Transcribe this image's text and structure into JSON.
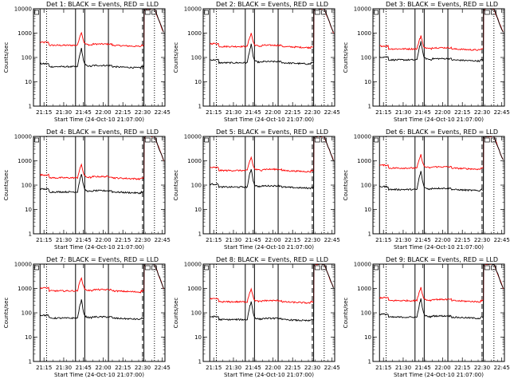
{
  "colors": {
    "events": "#000000",
    "lld": "#ff0000",
    "background": "#ffffff"
  },
  "chart_data": [
    {
      "type": "line",
      "title": "Det  1: BLACK = Events, RED = LLD",
      "xlabel": "Start Time (24-Oct-10 21:07:00)",
      "ylabel": "Counts/sec",
      "ylim": [
        1,
        10000
      ],
      "yscale": "log",
      "xlim": [
        "21:07",
        "22:47"
      ],
      "x_tick_labels": [
        "21:15",
        "21:30",
        "21:45",
        "22:00",
        "22:15",
        "22:30",
        "22:45"
      ],
      "y_tick_labels": [
        "1",
        "10",
        "100",
        "1000",
        "10000"
      ],
      "series": [
        {
          "name": "Events",
          "color": "#000000"
        },
        {
          "name": "LLD",
          "color": "#ff0000"
        }
      ]
    },
    {
      "type": "line",
      "title": "Det  2: BLACK = Events, RED = LLD",
      "xlabel": "Start Time (24-Oct-10 21:07:00)",
      "ylabel": "Counts/sec",
      "ylim": [
        1,
        10000
      ],
      "yscale": "log",
      "xlim": [
        "21:07",
        "22:47"
      ],
      "x_tick_labels": [
        "21:15",
        "21:30",
        "21:45",
        "22:00",
        "22:15",
        "22:30",
        "22:45"
      ],
      "y_tick_labels": [
        "1",
        "10",
        "100",
        "1000",
        "10000"
      ],
      "series": [
        {
          "name": "Events",
          "color": "#000000"
        },
        {
          "name": "LLD",
          "color": "#ff0000"
        }
      ]
    },
    {
      "type": "line",
      "title": "Det  3: BLACK = Events, RED = LLD",
      "xlabel": "Start Time (24-Oct-10 21:07:00)",
      "ylabel": "Counts/sec",
      "ylim": [
        1,
        10000
      ],
      "yscale": "log",
      "xlim": [
        "21:07",
        "22:47"
      ],
      "x_tick_labels": [
        "21:15",
        "21:30",
        "21:45",
        "22:00",
        "22:15",
        "22:30",
        "22:45"
      ],
      "y_tick_labels": [
        "1",
        "10",
        "100",
        "1000",
        "10000"
      ],
      "series": [
        {
          "name": "Events",
          "color": "#000000"
        },
        {
          "name": "LLD",
          "color": "#ff0000"
        }
      ]
    },
    {
      "type": "line",
      "title": "Det  4: BLACK = Events, RED = LLD",
      "xlabel": "Start Time (24-Oct-10 21:07:00)",
      "ylabel": "Counts/sec",
      "ylim": [
        1,
        10000
      ],
      "yscale": "log",
      "xlim": [
        "21:07",
        "22:47"
      ],
      "x_tick_labels": [
        "21:15",
        "21:30",
        "21:45",
        "22:00",
        "22:15",
        "22:30",
        "22:45"
      ],
      "y_tick_labels": [
        "1",
        "10",
        "100",
        "1000",
        "10000"
      ],
      "series": [
        {
          "name": "Events",
          "color": "#000000"
        },
        {
          "name": "LLD",
          "color": "#ff0000"
        }
      ]
    },
    {
      "type": "line",
      "title": "Det  5: BLACK = Events, RED = LLD",
      "xlabel": "Start Time (24-Oct-10 21:07:00)",
      "ylabel": "Counts/sec",
      "ylim": [
        1,
        10000
      ],
      "yscale": "log",
      "xlim": [
        "21:07",
        "22:47"
      ],
      "x_tick_labels": [
        "21:15",
        "21:30",
        "21:45",
        "22:00",
        "22:15",
        "22:30",
        "22:45"
      ],
      "y_tick_labels": [
        "1",
        "10",
        "100",
        "1000",
        "10000"
      ],
      "series": [
        {
          "name": "Events",
          "color": "#000000"
        },
        {
          "name": "LLD",
          "color": "#ff0000"
        }
      ]
    },
    {
      "type": "line",
      "title": "Det  6: BLACK = Events, RED = LLD",
      "xlabel": "Start Time (24-Oct-10 21:07:00)",
      "ylabel": "Counts/sec",
      "ylim": [
        1,
        10000
      ],
      "yscale": "log",
      "xlim": [
        "21:07",
        "22:47"
      ],
      "x_tick_labels": [
        "21:15",
        "21:30",
        "21:45",
        "22:00",
        "22:15",
        "22:30",
        "22:45"
      ],
      "y_tick_labels": [
        "1",
        "10",
        "100",
        "1000",
        "10000"
      ],
      "series": [
        {
          "name": "Events",
          "color": "#000000"
        },
        {
          "name": "LLD",
          "color": "#ff0000"
        }
      ]
    },
    {
      "type": "line",
      "title": "Det  7: BLACK = Events, RED = LLD",
      "xlabel": "Start Time (24-Oct-10 21:07:00)",
      "ylabel": "Counts/sec",
      "ylim": [
        1,
        10000
      ],
      "yscale": "log",
      "xlim": [
        "21:07",
        "22:47"
      ],
      "x_tick_labels": [
        "21:15",
        "21:30",
        "21:45",
        "22:00",
        "22:15",
        "22:30",
        "22:45"
      ],
      "y_tick_labels": [
        "1",
        "10",
        "100",
        "1000",
        "10000"
      ],
      "series": [
        {
          "name": "Events",
          "color": "#000000"
        },
        {
          "name": "LLD",
          "color": "#ff0000"
        }
      ]
    },
    {
      "type": "line",
      "title": "Det  8: BLACK = Events, RED = LLD",
      "xlabel": "Start Time (24-Oct-10 21:07:00)",
      "ylabel": "Counts/sec",
      "ylim": [
        1,
        10000
      ],
      "yscale": "log",
      "xlim": [
        "21:07",
        "22:47"
      ],
      "x_tick_labels": [
        "21:15",
        "21:30",
        "21:45",
        "22:00",
        "22:15",
        "22:30",
        "22:45"
      ],
      "y_tick_labels": [
        "1",
        "10",
        "100",
        "1000",
        "10000"
      ],
      "series": [
        {
          "name": "Events",
          "color": "#000000"
        },
        {
          "name": "LLD",
          "color": "#ff0000"
        }
      ]
    },
    {
      "type": "line",
      "title": "Det  9: BLACK = Events, RED = LLD",
      "xlabel": "Start Time (24-Oct-10 21:07:00)",
      "ylabel": "Counts/sec",
      "ylim": [
        1,
        10000
      ],
      "yscale": "log",
      "xlim": [
        "21:07",
        "22:47"
      ],
      "x_tick_labels": [
        "21:15",
        "21:30",
        "21:45",
        "22:00",
        "22:15",
        "22:30",
        "22:45"
      ],
      "y_tick_labels": [
        "1",
        "10",
        "100",
        "1000",
        "10000"
      ],
      "series": [
        {
          "name": "Events",
          "color": "#000000"
        },
        {
          "name": "LLD",
          "color": "#ff0000"
        }
      ]
    }
  ]
}
